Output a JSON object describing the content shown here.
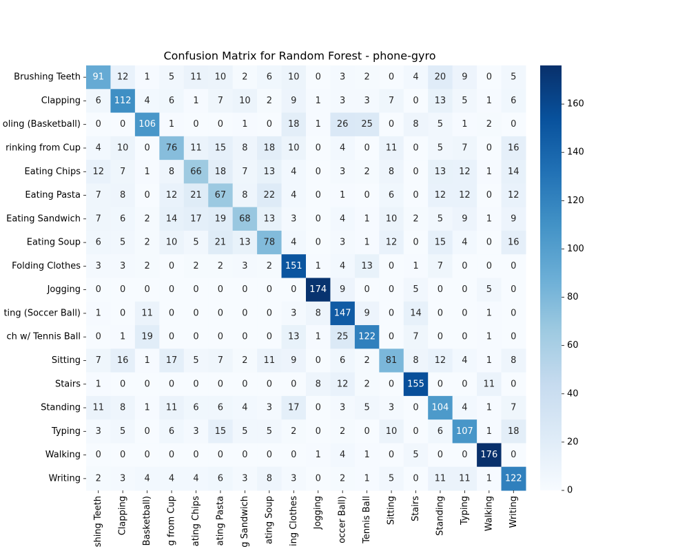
{
  "chart_data": {
    "type": "heatmap",
    "title": "Confusion Matrix for Random Forest - phone-gyro",
    "categories": [
      "Brushing Teeth",
      "Clapping",
      "oling (Basketball)",
      "rinking from Cup",
      "Eating Chips",
      "Eating Pasta",
      "Eating Sandwich",
      "Eating Soup",
      "Folding Clothes",
      "Jogging",
      "ting (Soccer Ball)",
      "ch w/ Tennis Ball",
      "Sitting",
      "Stairs",
      "Standing",
      "Typing",
      "Walking",
      "Writing"
    ],
    "x_categories": [
      "shing Teeth",
      "Clapping",
      "Basketball)",
      "g from Cup",
      "ating Chips",
      "ating Pasta",
      "g Sandwich",
      "ating Soup",
      "ing Clothes",
      "Jogging",
      "occer Ball)",
      "Tennis Ball",
      "Sitting",
      "Stairs",
      "Standing",
      "Typing",
      "Walking",
      "Writing"
    ],
    "matrix": [
      [
        91,
        12,
        1,
        5,
        11,
        10,
        2,
        6,
        10,
        0,
        3,
        2,
        0,
        4,
        20,
        9,
        0,
        5
      ],
      [
        6,
        112,
        4,
        6,
        1,
        7,
        10,
        2,
        9,
        1,
        3,
        3,
        7,
        0,
        13,
        5,
        1,
        6
      ],
      [
        0,
        0,
        106,
        1,
        0,
        0,
        1,
        0,
        18,
        1,
        26,
        25,
        0,
        8,
        5,
        1,
        2,
        0
      ],
      [
        4,
        10,
        0,
        76,
        11,
        15,
        8,
        18,
        10,
        0,
        4,
        0,
        11,
        0,
        5,
        7,
        0,
        16
      ],
      [
        12,
        7,
        1,
        8,
        66,
        18,
        7,
        13,
        4,
        0,
        3,
        2,
        8,
        0,
        13,
        12,
        1,
        14
      ],
      [
        7,
        8,
        0,
        12,
        21,
        67,
        8,
        22,
        4,
        0,
        1,
        0,
        6,
        0,
        12,
        12,
        0,
        12
      ],
      [
        7,
        6,
        2,
        14,
        17,
        19,
        68,
        13,
        3,
        0,
        4,
        1,
        10,
        2,
        5,
        9,
        1,
        9
      ],
      [
        6,
        5,
        2,
        10,
        5,
        21,
        13,
        78,
        4,
        0,
        3,
        1,
        12,
        0,
        15,
        4,
        0,
        16
      ],
      [
        3,
        3,
        2,
        0,
        2,
        2,
        3,
        2,
        151,
        1,
        4,
        13,
        0,
        1,
        7,
        0,
        0,
        0
      ],
      [
        0,
        0,
        0,
        0,
        0,
        0,
        0,
        0,
        0,
        174,
        9,
        0,
        0,
        5,
        0,
        0,
        5,
        0
      ],
      [
        1,
        0,
        11,
        0,
        0,
        0,
        0,
        0,
        3,
        8,
        147,
        9,
        0,
        14,
        0,
        0,
        1,
        0
      ],
      [
        0,
        1,
        19,
        0,
        0,
        0,
        0,
        0,
        13,
        1,
        25,
        122,
        0,
        7,
        0,
        0,
        1,
        0
      ],
      [
        7,
        16,
        1,
        17,
        5,
        7,
        2,
        11,
        9,
        0,
        6,
        2,
        81,
        8,
        12,
        4,
        1,
        8
      ],
      [
        1,
        0,
        0,
        0,
        0,
        0,
        0,
        0,
        0,
        8,
        12,
        2,
        0,
        155,
        0,
        0,
        11,
        0
      ],
      [
        11,
        8,
        1,
        11,
        6,
        6,
        4,
        3,
        17,
        0,
        3,
        5,
        3,
        0,
        104,
        4,
        1,
        7
      ],
      [
        3,
        5,
        0,
        6,
        3,
        15,
        5,
        5,
        2,
        0,
        2,
        0,
        10,
        0,
        6,
        107,
        1,
        18
      ],
      [
        0,
        0,
        0,
        0,
        0,
        0,
        0,
        0,
        0,
        1,
        4,
        1,
        0,
        5,
        0,
        0,
        176,
        0
      ],
      [
        2,
        3,
        4,
        4,
        4,
        6,
        3,
        8,
        3,
        0,
        2,
        1,
        5,
        0,
        11,
        11,
        1,
        122
      ]
    ],
    "colormap": [
      "#f7fbff",
      "#deebf7",
      "#c6dbef",
      "#9ecae1",
      "#6baed6",
      "#4292c6",
      "#2171b5",
      "#08519c",
      "#08306b"
    ],
    "clim": [
      0,
      176
    ],
    "cticks": [
      0,
      20,
      40,
      60,
      80,
      100,
      120,
      140,
      160
    ]
  }
}
